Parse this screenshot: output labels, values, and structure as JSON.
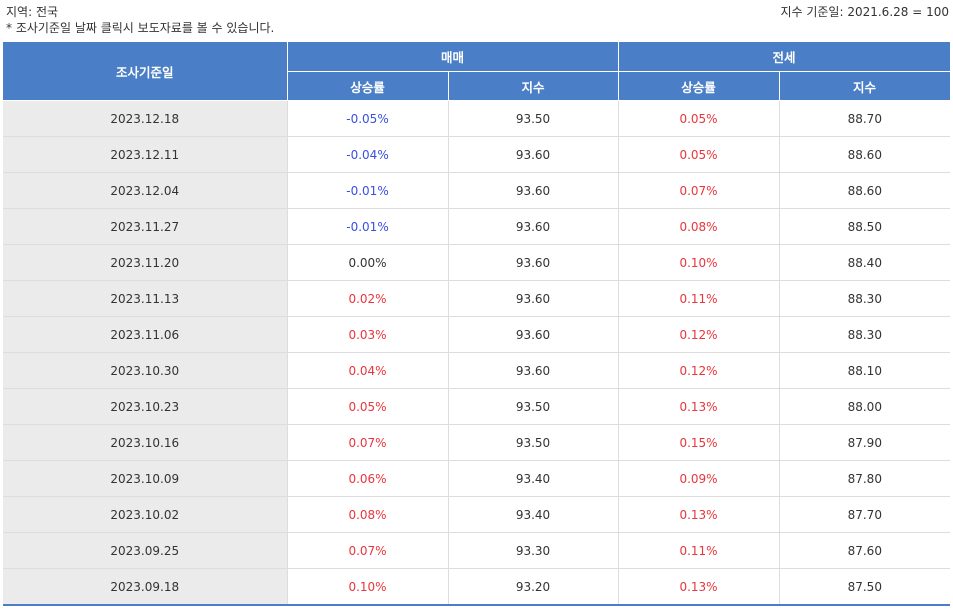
{
  "header": {
    "region": "지역: 전국",
    "note": "* 조사기준일 날짜 클릭시 보도자료를 볼 수 있습니다.",
    "base_index": "지수 기준일: 2021.6.28 = 100"
  },
  "table": {
    "date_header": "조사기준일",
    "group_sale": "매매",
    "group_jeonse": "전세",
    "sub_rate": "상승률",
    "sub_index": "지수",
    "rows": [
      {
        "date": "2023.12.18",
        "sale_rate": "-0.05%",
        "sale_index": "93.50",
        "jeonse_rate": "0.05%",
        "jeonse_index": "88.70"
      },
      {
        "date": "2023.12.11",
        "sale_rate": "-0.04%",
        "sale_index": "93.60",
        "jeonse_rate": "0.05%",
        "jeonse_index": "88.60"
      },
      {
        "date": "2023.12.04",
        "sale_rate": "-0.01%",
        "sale_index": "93.60",
        "jeonse_rate": "0.07%",
        "jeonse_index": "88.60"
      },
      {
        "date": "2023.11.27",
        "sale_rate": "-0.01%",
        "sale_index": "93.60",
        "jeonse_rate": "0.08%",
        "jeonse_index": "88.50"
      },
      {
        "date": "2023.11.20",
        "sale_rate": "0.00%",
        "sale_index": "93.60",
        "jeonse_rate": "0.10%",
        "jeonse_index": "88.40"
      },
      {
        "date": "2023.11.13",
        "sale_rate": "0.02%",
        "sale_index": "93.60",
        "jeonse_rate": "0.11%",
        "jeonse_index": "88.30"
      },
      {
        "date": "2023.11.06",
        "sale_rate": "0.03%",
        "sale_index": "93.60",
        "jeonse_rate": "0.12%",
        "jeonse_index": "88.30"
      },
      {
        "date": "2023.10.30",
        "sale_rate": "0.04%",
        "sale_index": "93.60",
        "jeonse_rate": "0.12%",
        "jeonse_index": "88.10"
      },
      {
        "date": "2023.10.23",
        "sale_rate": "0.05%",
        "sale_index": "93.50",
        "jeonse_rate": "0.13%",
        "jeonse_index": "88.00"
      },
      {
        "date": "2023.10.16",
        "sale_rate": "0.07%",
        "sale_index": "93.50",
        "jeonse_rate": "0.15%",
        "jeonse_index": "87.90"
      },
      {
        "date": "2023.10.09",
        "sale_rate": "0.06%",
        "sale_index": "93.40",
        "jeonse_rate": "0.09%",
        "jeonse_index": "87.80"
      },
      {
        "date": "2023.10.02",
        "sale_rate": "0.08%",
        "sale_index": "93.40",
        "jeonse_rate": "0.13%",
        "jeonse_index": "87.70"
      },
      {
        "date": "2023.09.25",
        "sale_rate": "0.07%",
        "sale_index": "93.30",
        "jeonse_rate": "0.11%",
        "jeonse_index": "87.60"
      },
      {
        "date": "2023.09.18",
        "sale_rate": "0.10%",
        "sale_index": "93.20",
        "jeonse_rate": "0.13%",
        "jeonse_index": "87.50"
      }
    ]
  },
  "colors": {
    "header_bg": "#4a7ec6",
    "negative": "#3b4fe0",
    "positive": "#e8353b",
    "date_cell_bg": "#ebebeb"
  }
}
